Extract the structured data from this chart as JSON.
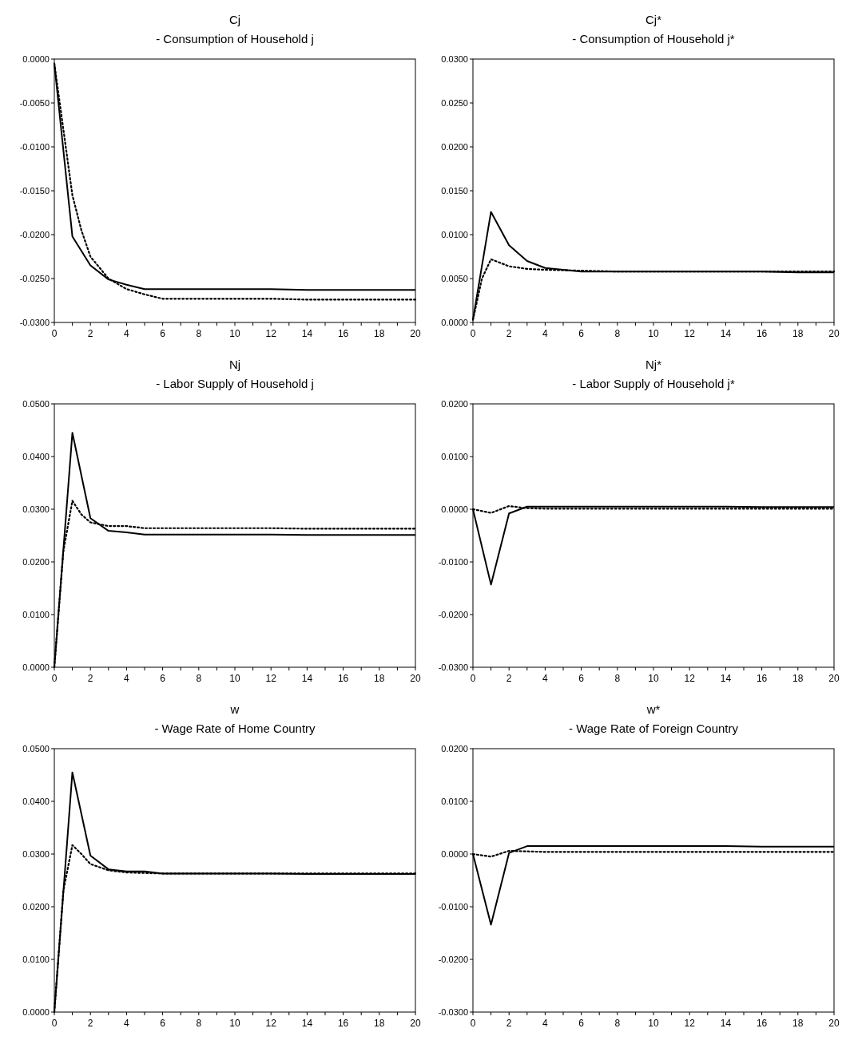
{
  "chart_data": [
    {
      "type": "line",
      "title": "Cj",
      "subtitle": "- Consumption of Household j",
      "xlim": [
        0,
        20
      ],
      "xticks": [
        0,
        {
          "value": 1,
          "label": null
        },
        2,
        {
          "value": 3,
          "label": null
        },
        4,
        {
          "value": 5,
          "label": null
        },
        6,
        {
          "value": 7,
          "label": null
        },
        8,
        {
          "value": 9,
          "label": null
        },
        10,
        {
          "value": 11,
          "label": null
        },
        12,
        {
          "value": 13,
          "label": null
        },
        14,
        {
          "value": 15,
          "label": null
        },
        16,
        {
          "value": 17,
          "label": null
        },
        18,
        {
          "value": 19,
          "label": null
        },
        20
      ],
      "ylim": [
        -0.03,
        0
      ],
      "yticks": [
        {
          "value": -0.03,
          "label": "-0.0300"
        },
        {
          "value": -0.025,
          "label": "-0.0250"
        },
        {
          "value": -0.02,
          "label": "-0.0200"
        },
        {
          "value": -0.015,
          "label": "-0.0150"
        },
        {
          "value": -0.01,
          "label": "-0.0100"
        },
        {
          "value": -0.005,
          "label": "-0.0050"
        },
        {
          "value": 0,
          "label": "0.0000"
        }
      ],
      "series": [
        {
          "color": "#000000",
          "line_style": "solid",
          "x": [
            0,
            1,
            2,
            3,
            4,
            5,
            6,
            8,
            10,
            12,
            14,
            16,
            18,
            20
          ],
          "values": [
            -0.0005,
            -0.0202,
            -0.0235,
            -0.0251,
            -0.0257,
            -0.0262,
            -0.0262,
            -0.0262,
            -0.0262,
            -0.0262,
            -0.0263,
            -0.0263,
            -0.0263,
            -0.0263
          ]
        },
        {
          "color": "#000000",
          "line_style": "dotted",
          "x": [
            0,
            0.5,
            1,
            1.5,
            2,
            3,
            4,
            5,
            6,
            8,
            10,
            12,
            14,
            16,
            18,
            20
          ],
          "values": [
            -0.0005,
            -0.008,
            -0.0155,
            -0.0195,
            -0.0225,
            -0.025,
            -0.0262,
            -0.0268,
            -0.0273,
            -0.0273,
            -0.0273,
            -0.0273,
            -0.0274,
            -0.0274,
            -0.0274,
            -0.0274
          ]
        }
      ]
    },
    {
      "type": "line",
      "title": "Cj*",
      "subtitle": "- Consumption of Household j*",
      "xlim": [
        0,
        20
      ],
      "xticks": [
        0,
        {
          "value": 1,
          "label": null
        },
        2,
        {
          "value": 3,
          "label": null
        },
        4,
        {
          "value": 5,
          "label": null
        },
        6,
        {
          "value": 7,
          "label": null
        },
        8,
        {
          "value": 9,
          "label": null
        },
        10,
        {
          "value": 11,
          "label": null
        },
        12,
        {
          "value": 13,
          "label": null
        },
        14,
        {
          "value": 15,
          "label": null
        },
        16,
        {
          "value": 17,
          "label": null
        },
        18,
        {
          "value": 19,
          "label": null
        },
        20
      ],
      "ylim": [
        0,
        0.03
      ],
      "yticks": [
        {
          "value": 0,
          "label": "0.0000"
        },
        {
          "value": 0.005,
          "label": "0.0050"
        },
        {
          "value": 0.01,
          "label": "0.0100"
        },
        {
          "value": 0.015,
          "label": "0.0150"
        },
        {
          "value": 0.02,
          "label": "0.0200"
        },
        {
          "value": 0.025,
          "label": "0.0250"
        },
        {
          "value": 0.03,
          "label": "0.0300"
        }
      ],
      "series": [
        {
          "color": "#000000",
          "line_style": "solid",
          "x": [
            0,
            1,
            2,
            3,
            4,
            5,
            6,
            8,
            10,
            12,
            14,
            16,
            18,
            20
          ],
          "values": [
            0.0003,
            0.0126,
            0.0088,
            0.007,
            0.0062,
            0.006,
            0.0058,
            0.0058,
            0.0058,
            0.0058,
            0.0058,
            0.0058,
            0.0057,
            0.0057
          ]
        },
        {
          "color": "#000000",
          "line_style": "dotted",
          "x": [
            0,
            0.5,
            1,
            1.5,
            2,
            3,
            4,
            6,
            8,
            10,
            12,
            14,
            16,
            18,
            20
          ],
          "values": [
            0.0003,
            0.005,
            0.0072,
            0.0068,
            0.0064,
            0.0061,
            0.006,
            0.0059,
            0.0058,
            0.0058,
            0.0058,
            0.0058,
            0.0058,
            0.0058,
            0.0058
          ]
        }
      ]
    },
    {
      "type": "line",
      "title": "Nj",
      "subtitle": "- Labor Supply of Household j",
      "xlim": [
        0,
        20
      ],
      "xticks": [
        0,
        {
          "value": 1,
          "label": null
        },
        2,
        {
          "value": 3,
          "label": null
        },
        4,
        {
          "value": 5,
          "label": null
        },
        6,
        {
          "value": 7,
          "label": null
        },
        8,
        {
          "value": 9,
          "label": null
        },
        10,
        {
          "value": 11,
          "label": null
        },
        12,
        {
          "value": 13,
          "label": null
        },
        14,
        {
          "value": 15,
          "label": null
        },
        16,
        {
          "value": 17,
          "label": null
        },
        18,
        {
          "value": 19,
          "label": null
        },
        20
      ],
      "ylim": [
        0,
        0.05
      ],
      "yticks": [
        {
          "value": 0,
          "label": "0.0000"
        },
        {
          "value": 0.01,
          "label": "0.0100"
        },
        {
          "value": 0.02,
          "label": "0.0200"
        },
        {
          "value": 0.03,
          "label": "0.0300"
        },
        {
          "value": 0.04,
          "label": "0.0400"
        },
        {
          "value": 0.05,
          "label": "0.0500"
        }
      ],
      "series": [
        {
          "color": "#000000",
          "line_style": "solid",
          "x": [
            0,
            1,
            2,
            3,
            4,
            5,
            6,
            8,
            10,
            12,
            14,
            16,
            18,
            20
          ],
          "values": [
            0,
            0.0445,
            0.0283,
            0.0259,
            0.0256,
            0.0252,
            0.0252,
            0.0252,
            0.0252,
            0.0252,
            0.0251,
            0.0251,
            0.0251,
            0.0251
          ]
        },
        {
          "color": "#000000",
          "line_style": "dotted",
          "x": [
            0,
            0.5,
            1,
            1.5,
            2,
            3,
            4,
            5,
            6,
            8,
            10,
            12,
            14,
            16,
            18,
            20
          ],
          "values": [
            0,
            0.022,
            0.0316,
            0.029,
            0.0275,
            0.0268,
            0.0268,
            0.0264,
            0.0264,
            0.0264,
            0.0264,
            0.0264,
            0.0263,
            0.0263,
            0.0263,
            0.0263
          ]
        }
      ]
    },
    {
      "type": "line",
      "title": "Nj*",
      "subtitle": "- Labor Supply of Household j*",
      "xlim": [
        0,
        20
      ],
      "xticks": [
        0,
        {
          "value": 1,
          "label": null
        },
        2,
        {
          "value": 3,
          "label": null
        },
        4,
        {
          "value": 5,
          "label": null
        },
        6,
        {
          "value": 7,
          "label": null
        },
        8,
        {
          "value": 9,
          "label": null
        },
        10,
        {
          "value": 11,
          "label": null
        },
        12,
        {
          "value": 13,
          "label": null
        },
        14,
        {
          "value": 15,
          "label": null
        },
        16,
        {
          "value": 17,
          "label": null
        },
        18,
        {
          "value": 19,
          "label": null
        },
        20
      ],
      "ylim": [
        -0.03,
        0.02
      ],
      "yticks": [
        {
          "value": -0.03,
          "label": "-0.0300"
        },
        {
          "value": -0.02,
          "label": "-0.0200"
        },
        {
          "value": -0.01,
          "label": "-0.0100"
        },
        {
          "value": 0,
          "label": "0.0000"
        },
        {
          "value": 0.01,
          "label": "0.0100"
        },
        {
          "value": 0.02,
          "label": "0.0200"
        }
      ],
      "series": [
        {
          "color": "#000000",
          "line_style": "solid",
          "x": [
            0,
            1,
            2,
            3,
            4,
            6,
            8,
            10,
            12,
            14,
            16,
            18,
            20
          ],
          "values": [
            0,
            -0.0143,
            -0.0008,
            0.0005,
            0.0005,
            0.0005,
            0.0005,
            0.0005,
            0.0005,
            0.0005,
            0.0004,
            0.0004,
            0.0004
          ]
        },
        {
          "color": "#000000",
          "line_style": "dotted",
          "x": [
            0,
            1,
            2,
            3,
            4,
            6,
            8,
            10,
            12,
            14,
            16,
            18,
            20
          ],
          "values": [
            0,
            -0.0007,
            0.0006,
            0.0002,
            0.0001,
            0.0001,
            0.0001,
            0.0001,
            0.0001,
            0.0001,
            0.0001,
            0.0001,
            0.0001
          ]
        }
      ]
    },
    {
      "type": "line",
      "title": "w",
      "subtitle": "- Wage Rate of Home Country",
      "xlim": [
        0,
        20
      ],
      "xticks": [
        0,
        {
          "value": 1,
          "label": null
        },
        2,
        {
          "value": 3,
          "label": null
        },
        4,
        {
          "value": 5,
          "label": null
        },
        6,
        {
          "value": 7,
          "label": null
        },
        8,
        {
          "value": 9,
          "label": null
        },
        10,
        {
          "value": 11,
          "label": null
        },
        12,
        {
          "value": 13,
          "label": null
        },
        14,
        {
          "value": 15,
          "label": null
        },
        16,
        {
          "value": 17,
          "label": null
        },
        18,
        {
          "value": 19,
          "label": null
        },
        20
      ],
      "ylim": [
        0,
        0.05
      ],
      "yticks": [
        {
          "value": 0,
          "label": "0.0000"
        },
        {
          "value": 0.01,
          "label": "0.0100"
        },
        {
          "value": 0.02,
          "label": "0.0200"
        },
        {
          "value": 0.03,
          "label": "0.0300"
        },
        {
          "value": 0.04,
          "label": "0.0400"
        },
        {
          "value": 0.05,
          "label": "0.0500"
        }
      ],
      "series": [
        {
          "color": "#000000",
          "line_style": "solid",
          "x": [
            0,
            1,
            2,
            3,
            4,
            5,
            6,
            8,
            10,
            12,
            14,
            16,
            18,
            20
          ],
          "values": [
            0,
            0.0455,
            0.0297,
            0.0271,
            0.0267,
            0.0267,
            0.0263,
            0.0263,
            0.0263,
            0.0263,
            0.0262,
            0.0262,
            0.0262,
            0.0262
          ]
        },
        {
          "color": "#000000",
          "line_style": "dotted",
          "x": [
            0,
            0.5,
            1,
            1.5,
            2,
            3,
            4,
            5,
            6,
            8,
            10,
            12,
            14,
            16,
            18,
            20
          ],
          "values": [
            0,
            0.023,
            0.0317,
            0.03,
            0.0281,
            0.0269,
            0.0265,
            0.0264,
            0.0263,
            0.0263,
            0.0263,
            0.0263,
            0.0263,
            0.0263,
            0.0263,
            0.0263
          ]
        }
      ]
    },
    {
      "type": "line",
      "title": "w*",
      "subtitle": "- Wage Rate of Foreign Country",
      "xlim": [
        0,
        20
      ],
      "xticks": [
        0,
        {
          "value": 1,
          "label": null
        },
        2,
        {
          "value": 3,
          "label": null
        },
        4,
        {
          "value": 5,
          "label": null
        },
        6,
        {
          "value": 7,
          "label": null
        },
        8,
        {
          "value": 9,
          "label": null
        },
        10,
        {
          "value": 11,
          "label": null
        },
        12,
        {
          "value": 13,
          "label": null
        },
        14,
        {
          "value": 15,
          "label": null
        },
        16,
        {
          "value": 17,
          "label": null
        },
        18,
        {
          "value": 19,
          "label": null
        },
        20
      ],
      "ylim": [
        -0.03,
        0.02
      ],
      "yticks": [
        {
          "value": -0.03,
          "label": "-0.0300"
        },
        {
          "value": -0.02,
          "label": "-0.0200"
        },
        {
          "value": -0.01,
          "label": "-0.0100"
        },
        {
          "value": 0,
          "label": "0.0000"
        },
        {
          "value": 0.01,
          "label": "0.0100"
        },
        {
          "value": 0.02,
          "label": "0.0200"
        }
      ],
      "series": [
        {
          "color": "#000000",
          "line_style": "solid",
          "x": [
            0,
            1,
            2,
            3,
            4,
            6,
            8,
            10,
            12,
            14,
            16,
            18,
            20
          ],
          "values": [
            0,
            -0.0134,
            0.0002,
            0.0015,
            0.0015,
            0.0015,
            0.0015,
            0.0015,
            0.0015,
            0.0015,
            0.0014,
            0.0014,
            0.0014
          ]
        },
        {
          "color": "#000000",
          "line_style": "dotted",
          "x": [
            0,
            1,
            2,
            3,
            4,
            6,
            8,
            10,
            12,
            14,
            16,
            18,
            20
          ],
          "values": [
            0,
            -0.0005,
            0.0006,
            0.0005,
            0.0004,
            0.0004,
            0.0004,
            0.0004,
            0.0004,
            0.0004,
            0.0004,
            0.0004,
            0.0004
          ]
        }
      ]
    }
  ]
}
